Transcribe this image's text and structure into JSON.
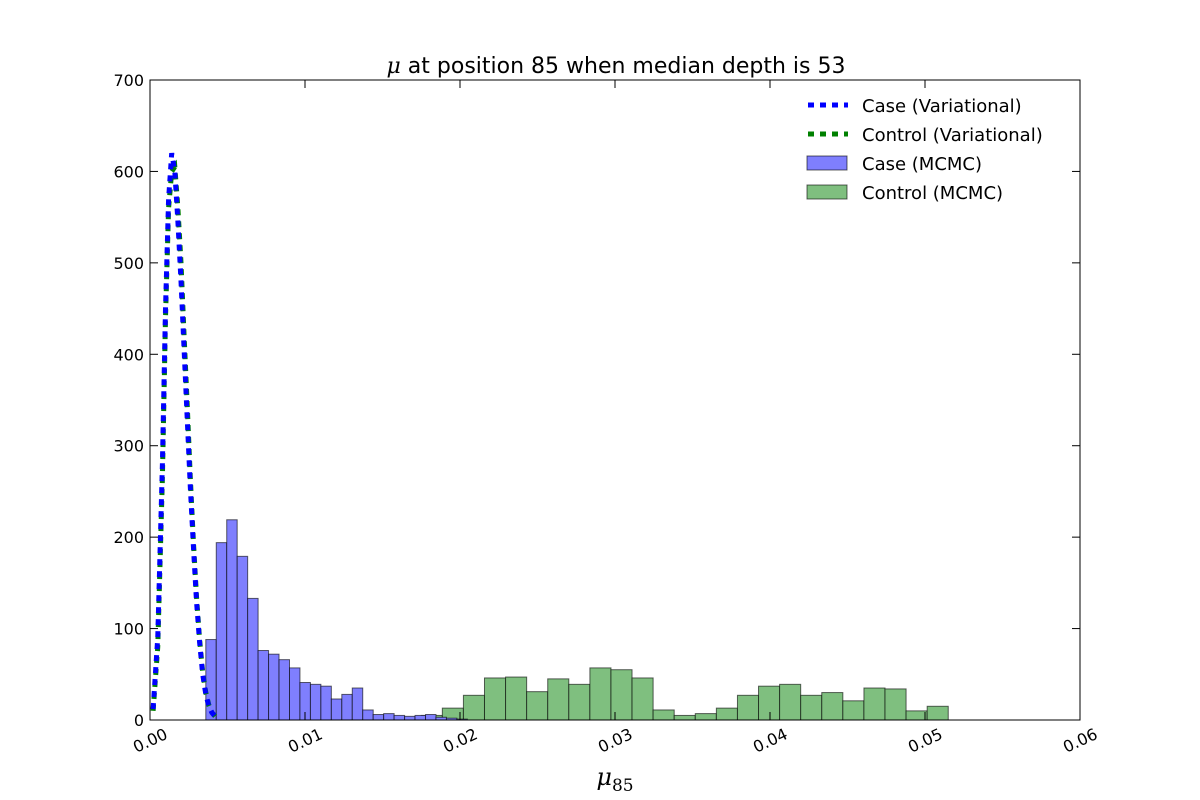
{
  "chart_data": {
    "type": "histogram",
    "title": {
      "symbol": "μ",
      "text": " at position 85 when median depth is 53"
    },
    "xlabel": {
      "symbol": "μ",
      "subscript": "85"
    },
    "ylabel": "",
    "xlim": [
      0.0,
      0.06
    ],
    "ylim": [
      0,
      700
    ],
    "x_ticks": [
      "0.00",
      "0.01",
      "0.02",
      "0.03",
      "0.04",
      "0.05",
      "0.06"
    ],
    "y_ticks": [
      "0",
      "100",
      "200",
      "300",
      "400",
      "500",
      "600",
      "700"
    ],
    "grid": false,
    "legend_position": "top-right",
    "colors": {
      "case": "#0000ff",
      "control": "#008000",
      "case_fill": "#7f7ffe",
      "control_fill": "#7fbf7f"
    },
    "series": [
      {
        "name": "Case (Variational)",
        "kind": "line",
        "style": "dashed",
        "color": "#0000ff",
        "x": [
          0.0002,
          0.0005,
          0.0008,
          0.001,
          0.0012,
          0.0014,
          0.0016,
          0.0018,
          0.002,
          0.0022,
          0.0024,
          0.0026,
          0.0028,
          0.003,
          0.0032,
          0.0034,
          0.0036,
          0.0038,
          0.004,
          0.0042
        ],
        "y": [
          12,
          90,
          280,
          450,
          570,
          620,
          600,
          545,
          480,
          405,
          330,
          255,
          190,
          130,
          85,
          50,
          28,
          15,
          8,
          4
        ]
      },
      {
        "name": "Control (Variational)",
        "kind": "line",
        "style": "dashed",
        "color": "#008000",
        "x": [
          0.0002,
          0.0005,
          0.0008,
          0.001,
          0.0012,
          0.0014,
          0.0016,
          0.0018,
          0.002,
          0.0022,
          0.0024,
          0.0026,
          0.0028,
          0.003,
          0.0032,
          0.0034,
          0.0036,
          0.0038,
          0.004,
          0.0042
        ],
        "y": [
          10,
          80,
          265,
          440,
          560,
          600,
          605,
          560,
          500,
          420,
          345,
          265,
          195,
          135,
          88,
          52,
          30,
          16,
          8,
          4
        ]
      },
      {
        "name": "Case (MCMC)",
        "kind": "histogram",
        "color": "#7f7ffe",
        "bin_start": 0.0036,
        "bin_width": 0.000675,
        "values": [
          88,
          194,
          219,
          179,
          133,
          76,
          72,
          66,
          57,
          41,
          39,
          37,
          23,
          28,
          35,
          11,
          6,
          7,
          5,
          4,
          5,
          6,
          3,
          2,
          1
        ]
      },
      {
        "name": "Control (MCMC)",
        "kind": "histogram",
        "color": "#7fbf7f",
        "bin_start": 0.0175,
        "bin_width": 0.00136,
        "values": [
          5,
          13,
          27,
          46,
          47,
          31,
          45,
          39,
          57,
          55,
          46,
          11,
          5,
          7,
          13,
          27,
          37,
          39,
          27,
          30,
          21,
          35,
          34,
          10,
          15
        ]
      }
    ]
  }
}
